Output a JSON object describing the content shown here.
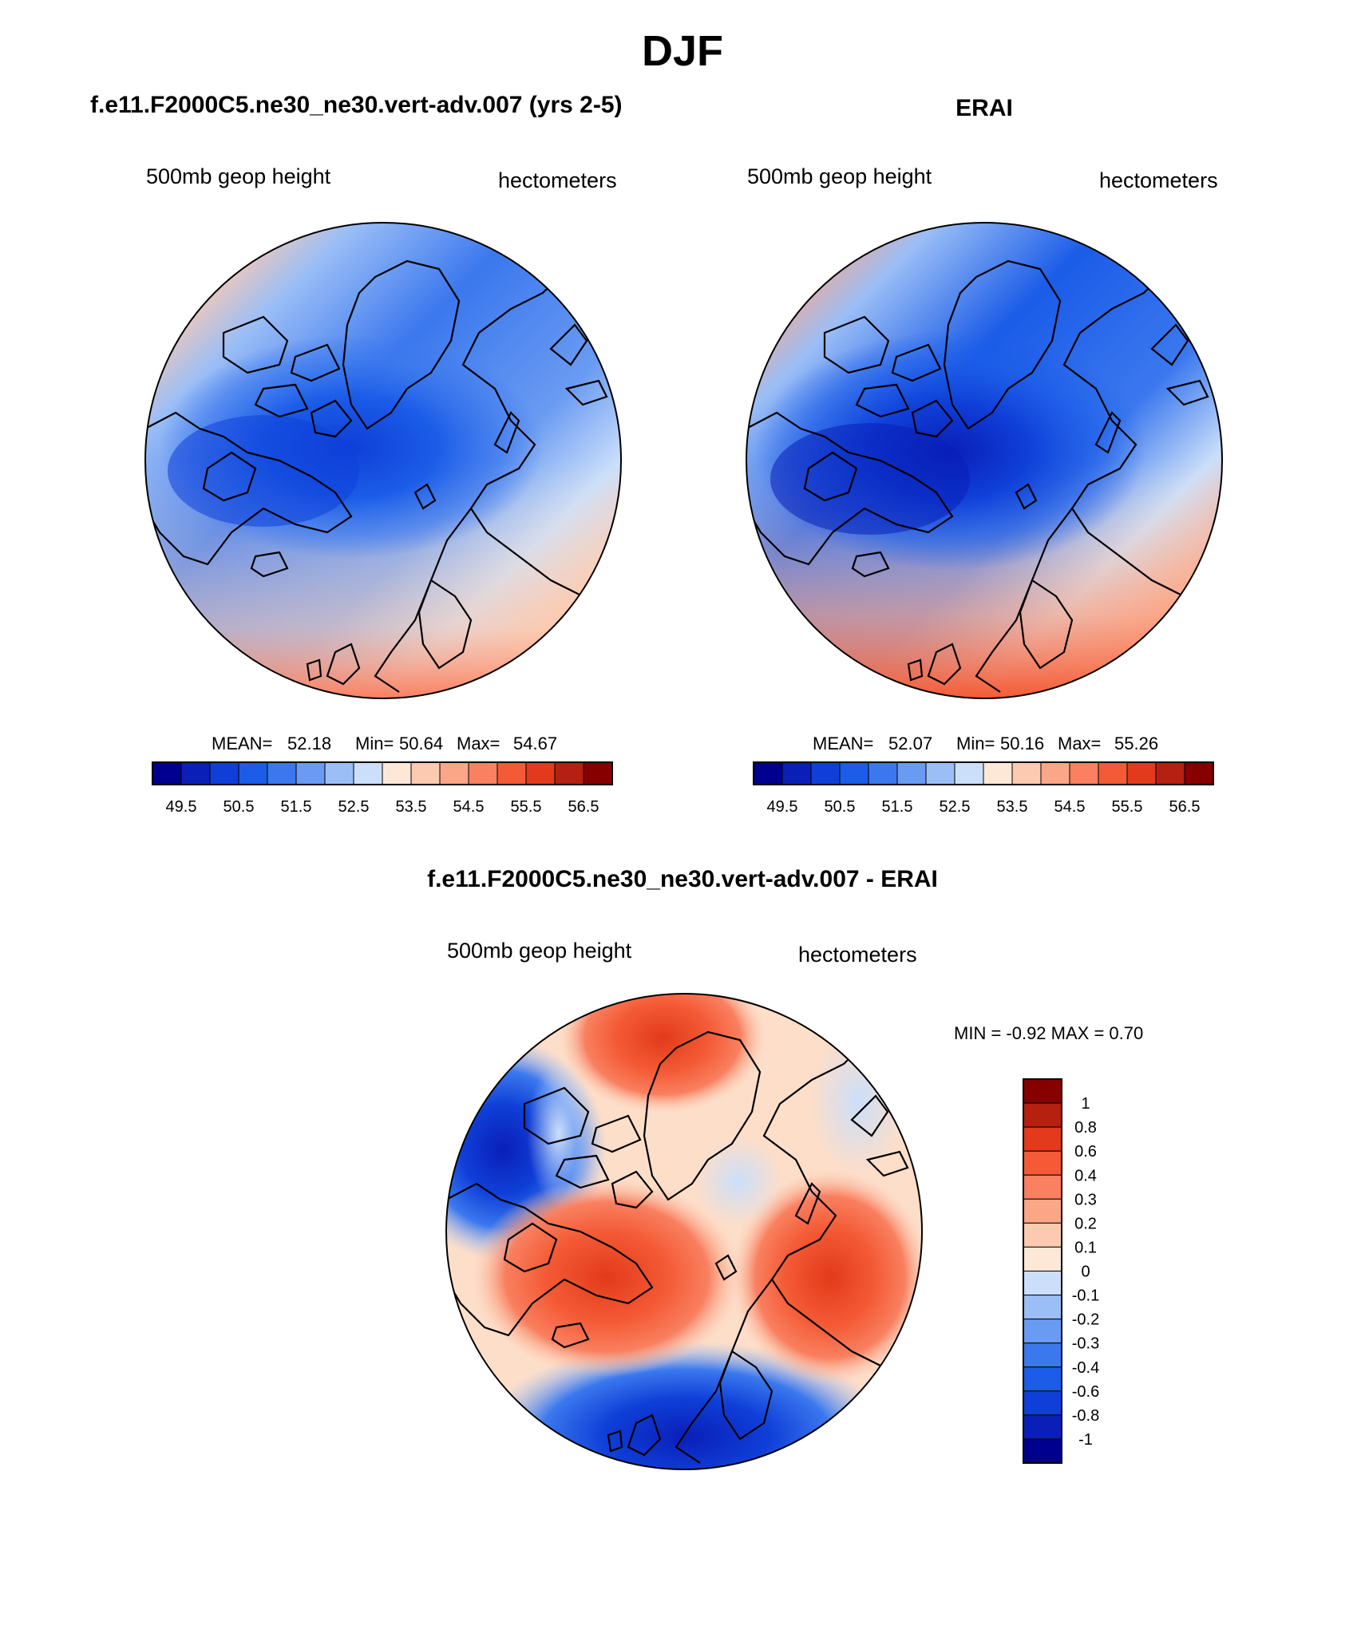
{
  "figure": {
    "title": "DJF"
  },
  "panels": [
    {
      "id": "model",
      "title": "f.e11.F2000C5.ne30_ne30.vert-adv.007 (yrs 2-5)",
      "left_label": "500mb geop height",
      "right_label": "hectometers",
      "stats": {
        "mean_label": "MEAN=",
        "mean": "52.18",
        "min_label": "Min=",
        "min": "50.64",
        "max_label": "Max=",
        "max": "54.67"
      }
    },
    {
      "id": "obs",
      "title": "ERAI",
      "left_label": "500mb geop height",
      "right_label": "hectometers",
      "stats": {
        "mean_label": "MEAN=",
        "mean": "52.07",
        "min_label": "Min=",
        "min": "50.16",
        "max_label": "Max=",
        "max": "55.26"
      }
    },
    {
      "id": "diff",
      "title": "f.e11.F2000C5.ne30_ne30.vert-adv.007 - ERAI",
      "left_label": "500mb geop height",
      "right_label": "hectometers",
      "stats_text": "MIN =  -0.92 MAX =   0.70"
    }
  ],
  "colorbars": {
    "absolute": {
      "orientation": "horizontal",
      "tick_labels": [
        "49.5",
        "50.5",
        "51.5",
        "52.5",
        "53.5",
        "54.5",
        "55.5",
        "56.5"
      ],
      "colors": [
        "#00008f",
        "#0a1fb8",
        "#0f3fd8",
        "#1b5ce8",
        "#3b78ee",
        "#6a9bf2",
        "#9bbef6",
        "#cbdffa",
        "#fde8d8",
        "#fccab0",
        "#fba687",
        "#f98060",
        "#f45a35",
        "#e23a1a",
        "#b52010",
        "#860000"
      ]
    },
    "difference": {
      "orientation": "vertical",
      "tick_labels": [
        "1",
        "0.8",
        "0.6",
        "0.4",
        "0.3",
        "0.2",
        "0.1",
        "0",
        "-0.1",
        "-0.2",
        "-0.3",
        "-0.4",
        "-0.6",
        "-0.8",
        "-1"
      ],
      "colors": [
        "#860000",
        "#b52010",
        "#e23a1a",
        "#f45a35",
        "#f98060",
        "#fba687",
        "#fccab0",
        "#fde8d8",
        "#cbdffa",
        "#9bbef6",
        "#6a9bf2",
        "#3b78ee",
        "#1b5ce8",
        "#0f3fd8",
        "#0a1fb8",
        "#00008f"
      ]
    }
  },
  "map_data": {
    "projection": "north polar stereographic",
    "variable": "500mb geopotential height",
    "season": "DJF",
    "units": "hectometers"
  }
}
